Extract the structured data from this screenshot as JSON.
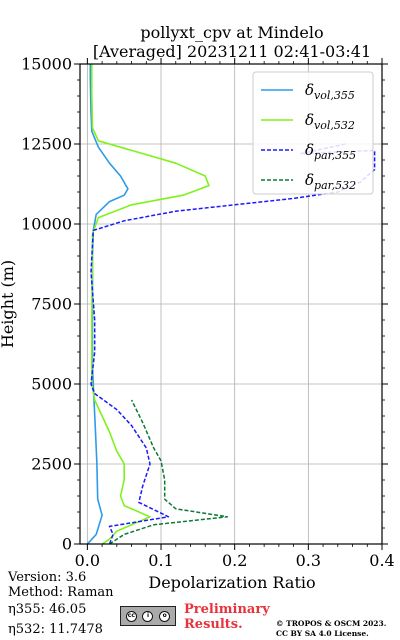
{
  "figure": {
    "title_line1": "pollyxt_cpv at Mindelo",
    "title_line2": "[Averaged] 20231211 02:41-03:41"
  },
  "chart_data": {
    "type": "line",
    "title": "pollyxt_cpv at Mindelo [Averaged] 20231211 02:41-03:41",
    "xlabel": "Depolarization Ratio",
    "ylabel": "Height (m)",
    "xlim": [
      -0.01,
      0.4
    ],
    "ylim": [
      0,
      15000
    ],
    "xticks": [
      0.0,
      0.1,
      0.2,
      0.3,
      0.4
    ],
    "xtick_labels": [
      "0.0",
      "0.1",
      "0.2",
      "0.3",
      "0.4"
    ],
    "yticks": [
      0,
      2500,
      5000,
      7500,
      10000,
      12500,
      15000
    ],
    "ytick_labels": [
      "0",
      "2500",
      "5000",
      "7500",
      "10000",
      "12500",
      "15000"
    ],
    "grid": true,
    "legend_position": "top-right",
    "series": [
      {
        "name": "δvol,355",
        "symbol": "δ",
        "subscript": "vol,355",
        "color": "#2e9be8",
        "dash": "solid",
        "points": [
          [
            0.0,
            0
          ],
          [
            0.012,
            300
          ],
          [
            0.02,
            900
          ],
          [
            0.014,
            1400
          ],
          [
            0.013,
            2500
          ],
          [
            0.011,
            3500
          ],
          [
            0.009,
            4500
          ],
          [
            0.007,
            5500
          ],
          [
            0.007,
            7000
          ],
          [
            0.007,
            9000
          ],
          [
            0.008,
            9800
          ],
          [
            0.012,
            10300
          ],
          [
            0.03,
            10700
          ],
          [
            0.05,
            10900
          ],
          [
            0.055,
            11100
          ],
          [
            0.045,
            11500
          ],
          [
            0.03,
            11900
          ],
          [
            0.015,
            12400
          ],
          [
            0.006,
            12900
          ],
          [
            0.005,
            13500
          ],
          [
            0.004,
            14500
          ],
          [
            0.004,
            15000
          ]
        ]
      },
      {
        "name": "δvol,532",
        "symbol": "δ",
        "subscript": "vol,532",
        "color": "#7ff21c",
        "dash": "solid",
        "points": [
          [
            0.02,
            0
          ],
          [
            0.03,
            150
          ],
          [
            0.04,
            400
          ],
          [
            0.085,
            850
          ],
          [
            0.05,
            1200
          ],
          [
            0.045,
            1500
          ],
          [
            0.05,
            2000
          ],
          [
            0.05,
            2500
          ],
          [
            0.04,
            2900
          ],
          [
            0.03,
            3500
          ],
          [
            0.02,
            4000
          ],
          [
            0.01,
            4500
          ],
          [
            0.006,
            5000
          ],
          [
            0.006,
            7000
          ],
          [
            0.007,
            9700
          ],
          [
            0.015,
            10200
          ],
          [
            0.06,
            10600
          ],
          [
            0.13,
            10900
          ],
          [
            0.165,
            11200
          ],
          [
            0.16,
            11500
          ],
          [
            0.12,
            11900
          ],
          [
            0.06,
            12300
          ],
          [
            0.015,
            12600
          ],
          [
            0.007,
            13000
          ],
          [
            0.006,
            14000
          ],
          [
            0.006,
            15000
          ]
        ]
      },
      {
        "name": "δpar,355",
        "symbol": "δ",
        "subscript": "par,355",
        "color": "#1a1aff",
        "dash": "dashed",
        "points": [
          [
            0.03,
            0
          ],
          [
            0.035,
            300
          ],
          [
            0.03,
            550
          ],
          [
            0.11,
            850
          ],
          [
            0.07,
            1300
          ],
          [
            0.075,
            1800
          ],
          [
            0.085,
            2500
          ],
          [
            0.08,
            3000
          ],
          [
            0.06,
            3700
          ],
          [
            0.04,
            4200
          ],
          [
            0.01,
            4700
          ],
          [
            0.005,
            5000
          ],
          [
            0.01,
            6000
          ],
          [
            0.01,
            7000
          ],
          [
            0.005,
            8500
          ],
          [
            0.008,
            9800
          ],
          [
            0.05,
            10100
          ],
          [
            0.12,
            10400
          ],
          [
            0.2,
            10600
          ],
          [
            0.28,
            10800
          ],
          [
            0.34,
            11000
          ],
          [
            0.37,
            11300
          ],
          [
            0.39,
            11700
          ],
          [
            0.39,
            12300
          ],
          [
            0.29,
            12200
          ],
          [
            0.35,
            12500
          ]
        ]
      },
      {
        "name": "δpar,532",
        "symbol": "δ",
        "subscript": "par,532",
        "color": "#0a7a32",
        "dash": "dashed",
        "points": [
          [
            0.03,
            0
          ],
          [
            0.05,
            300
          ],
          [
            0.09,
            600
          ],
          [
            0.19,
            850
          ],
          [
            0.12,
            1100
          ],
          [
            0.105,
            1400
          ],
          [
            0.105,
            2000
          ],
          [
            0.1,
            2600
          ],
          [
            0.09,
            3000
          ],
          [
            0.075,
            3800
          ],
          [
            0.06,
            4500
          ]
        ]
      }
    ]
  },
  "footer": {
    "version": "Version: 3.6",
    "method": "Method: Raman",
    "eta355_label": "η355:",
    "eta355_value": "46.05",
    "eta532_label": "η532:",
    "eta532_value": "11.7478",
    "preliminary": "Preliminary Results.",
    "copyright_line1": "© TROPOS & OSCM 2023.",
    "copyright_line2": "CC BY SA 4.0 License.",
    "cc_badge_symbols": [
      "cc",
      "i",
      "o"
    ]
  }
}
